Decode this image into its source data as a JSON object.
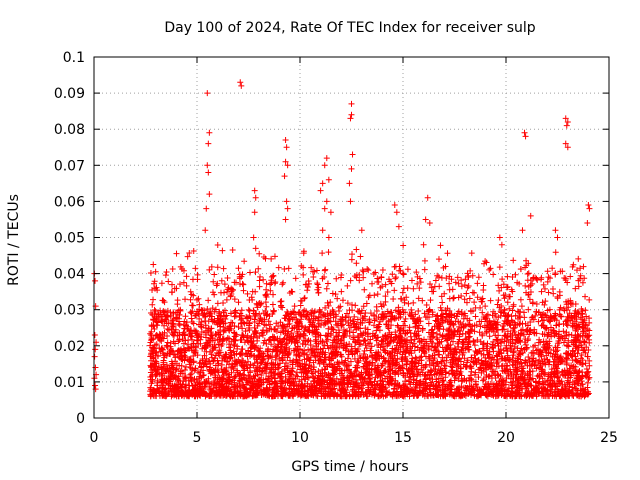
{
  "chart_data": {
    "type": "scatter",
    "title": "Day 100 of 2024, Rate Of TEC Index for receiver sulp",
    "xlabel": "GPS time / hours",
    "ylabel": "ROTI / TECUs",
    "xlim": [
      0,
      25
    ],
    "ylim": [
      0,
      0.1
    ],
    "xticks": [
      0,
      5,
      10,
      15,
      20,
      25
    ],
    "xtick_labels": [
      "0",
      "5",
      "10",
      "15",
      "20",
      "25"
    ],
    "yticks": [
      0,
      0.01,
      0.02,
      0.03,
      0.04,
      0.05,
      0.06,
      0.07,
      0.08,
      0.09,
      0.1
    ],
    "ytick_labels": [
      "0",
      "0.01",
      "0.02",
      "0.03",
      "0.04",
      "0.05",
      "0.06",
      "0.07",
      "0.08",
      "0.09",
      "0.1"
    ],
    "grid": true,
    "marker": "+",
    "color": "#ff0000",
    "series": [
      {
        "name": "ROTI",
        "description_of_distribution": "dense band 0.005-0.03 from 2.7h to 24h, sparse near 0h",
        "points": [
          [
            0.02,
            0.04
          ],
          [
            0.05,
            0.038
          ],
          [
            0.08,
            0.031
          ],
          [
            0.04,
            0.023
          ],
          [
            0.06,
            0.019
          ],
          [
            0.03,
            0.017
          ],
          [
            0.07,
            0.014
          ],
          [
            0.02,
            0.011
          ],
          [
            0.05,
            0.009
          ],
          [
            0.08,
            0.008
          ],
          [
            0.1,
            0.021
          ],
          [
            0.1,
            0.012
          ],
          [
            5.5,
            0.09
          ],
          [
            5.6,
            0.079
          ],
          [
            5.55,
            0.076
          ],
          [
            5.5,
            0.07
          ],
          [
            5.55,
            0.068
          ],
          [
            5.6,
            0.062
          ],
          [
            5.45,
            0.058
          ],
          [
            5.4,
            0.052
          ],
          [
            7.1,
            0.093
          ],
          [
            7.15,
            0.092
          ],
          [
            7.8,
            0.063
          ],
          [
            7.85,
            0.061
          ],
          [
            7.8,
            0.057
          ],
          [
            7.75,
            0.05
          ],
          [
            7.85,
            0.047
          ],
          [
            9.3,
            0.077
          ],
          [
            9.35,
            0.075
          ],
          [
            9.3,
            0.071
          ],
          [
            9.4,
            0.07
          ],
          [
            9.25,
            0.067
          ],
          [
            9.35,
            0.06
          ],
          [
            9.4,
            0.058
          ],
          [
            9.3,
            0.055
          ],
          [
            11.2,
            0.07
          ],
          [
            11.3,
            0.072
          ],
          [
            11.1,
            0.065
          ],
          [
            11.4,
            0.066
          ],
          [
            11.0,
            0.063
          ],
          [
            11.3,
            0.06
          ],
          [
            11.2,
            0.058
          ],
          [
            11.5,
            0.057
          ],
          [
            11.1,
            0.052
          ],
          [
            11.4,
            0.05
          ],
          [
            12.5,
            0.087
          ],
          [
            12.5,
            0.084
          ],
          [
            12.45,
            0.083
          ],
          [
            12.55,
            0.073
          ],
          [
            12.5,
            0.069
          ],
          [
            12.4,
            0.065
          ],
          [
            12.45,
            0.06
          ],
          [
            13.0,
            0.052
          ],
          [
            14.6,
            0.059
          ],
          [
            14.7,
            0.057
          ],
          [
            14.8,
            0.053
          ],
          [
            16.2,
            0.061
          ],
          [
            16.1,
            0.055
          ],
          [
            16.3,
            0.054
          ],
          [
            16.0,
            0.048
          ],
          [
            19.7,
            0.05
          ],
          [
            19.8,
            0.048
          ],
          [
            20.9,
            0.079
          ],
          [
            20.95,
            0.078
          ],
          [
            21.2,
            0.056
          ],
          [
            20.8,
            0.052
          ],
          [
            22.4,
            0.052
          ],
          [
            22.5,
            0.05
          ],
          [
            22.9,
            0.083
          ],
          [
            23.0,
            0.082
          ],
          [
            22.95,
            0.081
          ],
          [
            22.9,
            0.076
          ],
          [
            23.0,
            0.075
          ],
          [
            24.0,
            0.059
          ],
          [
            24.05,
            0.058
          ],
          [
            23.95,
            0.054
          ]
        ]
      }
    ]
  }
}
